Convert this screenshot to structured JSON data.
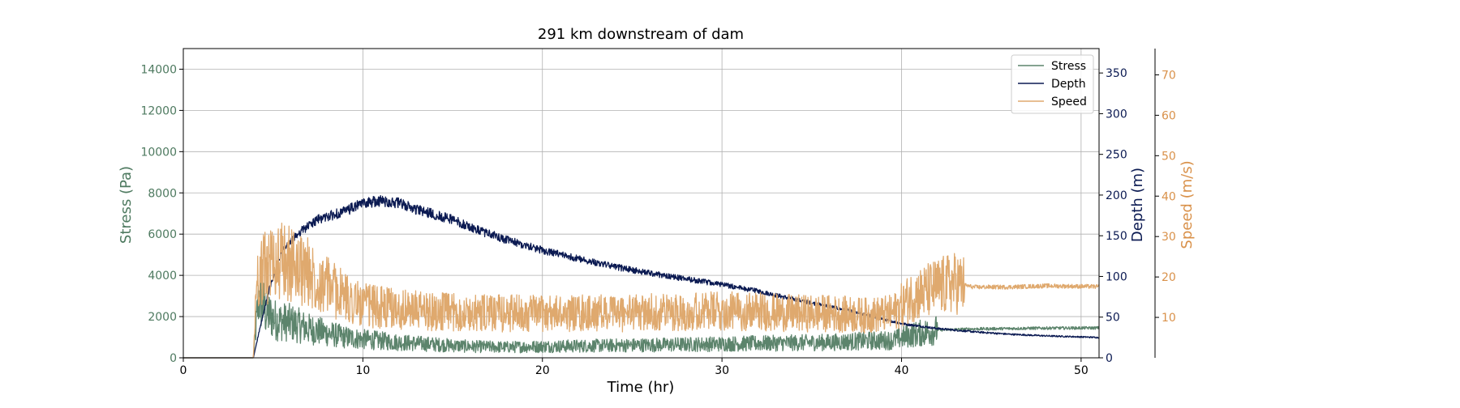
{
  "chart_data": {
    "type": "line",
    "title": "291 km downstream of dam",
    "xlabel": "Time (hr)",
    "xlim": [
      0,
      51
    ],
    "xticks": [
      0,
      10,
      20,
      30,
      40,
      50
    ],
    "grid": true,
    "legend_placement": "top-right",
    "axes": {
      "stress": {
        "label": "Stress (Pa)",
        "ylim": [
          0,
          15000
        ],
        "ticks": [
          0,
          2000,
          4000,
          6000,
          8000,
          10000,
          12000,
          14000
        ],
        "color": "#4e7a60",
        "side": "left"
      },
      "depth": {
        "label": "Depth (m)",
        "ylim": [
          0,
          380
        ],
        "ticks": [
          0,
          50,
          100,
          150,
          200,
          250,
          300,
          350
        ],
        "color": "#0b1a52",
        "side": "right"
      },
      "speed": {
        "label": "Speed (m/s)",
        "ylim": [
          0,
          76.5
        ],
        "ticks": [
          10,
          20,
          30,
          40,
          50,
          60,
          70
        ],
        "color": "#d9914a",
        "side": "right-outer"
      }
    },
    "series": [
      {
        "name": "Stress",
        "axis": "stress",
        "color": "#5c846c",
        "noise": 0.55,
        "points": [
          [
            0,
            0
          ],
          [
            3.9,
            0
          ],
          [
            4.2,
            3000
          ],
          [
            4.6,
            2200
          ],
          [
            5.2,
            1800
          ],
          [
            6,
            1700
          ],
          [
            7,
            1400
          ],
          [
            8,
            1200
          ],
          [
            9,
            1000
          ],
          [
            10,
            900
          ],
          [
            12,
            750
          ],
          [
            14,
            650
          ],
          [
            16,
            550
          ],
          [
            18,
            520
          ],
          [
            20,
            550
          ],
          [
            24,
            600
          ],
          [
            28,
            650
          ],
          [
            32,
            700
          ],
          [
            36,
            750
          ],
          [
            38,
            820
          ],
          [
            39.5,
            850
          ],
          [
            40.5,
            1100
          ],
          [
            42,
            1350
          ],
          [
            44,
            1400
          ],
          [
            46,
            1420
          ],
          [
            48,
            1440
          ],
          [
            51,
            1450
          ]
        ]
      },
      {
        "name": "Depth",
        "axis": "depth",
        "color": "#0b1a52",
        "noise": 0.035,
        "points": [
          [
            0,
            0
          ],
          [
            3.9,
            0
          ],
          [
            4.2,
            30
          ],
          [
            4.8,
            85
          ],
          [
            5.5,
            130
          ],
          [
            6.5,
            155
          ],
          [
            7.5,
            170
          ],
          [
            9,
            180
          ],
          [
            10,
            190
          ],
          [
            11,
            193
          ],
          [
            12,
            190
          ],
          [
            13,
            182
          ],
          [
            14,
            176
          ],
          [
            15,
            170
          ],
          [
            16,
            160
          ],
          [
            18,
            145
          ],
          [
            20,
            132
          ],
          [
            22,
            122
          ],
          [
            24,
            112
          ],
          [
            26,
            104
          ],
          [
            28,
            97
          ],
          [
            30,
            90
          ],
          [
            32,
            82
          ],
          [
            34,
            72
          ],
          [
            36,
            63
          ],
          [
            38,
            53
          ],
          [
            40,
            42
          ],
          [
            42,
            36
          ],
          [
            44,
            32
          ],
          [
            46,
            29
          ],
          [
            48,
            27
          ],
          [
            51,
            25
          ]
        ]
      },
      {
        "name": "Speed",
        "axis": "speed",
        "color": "#dfa96e",
        "noise": 0.42,
        "points": [
          [
            0,
            0
          ],
          [
            3.9,
            0
          ],
          [
            4.1,
            20
          ],
          [
            4.5,
            22
          ],
          [
            5,
            24
          ],
          [
            6,
            23
          ],
          [
            7,
            21
          ],
          [
            8,
            18
          ],
          [
            9,
            15
          ],
          [
            10,
            13
          ],
          [
            12,
            12
          ],
          [
            14,
            11.5
          ],
          [
            16,
            11
          ],
          [
            20,
            11
          ],
          [
            24,
            11
          ],
          [
            28,
            11.5
          ],
          [
            32,
            11.5
          ],
          [
            34,
            11
          ],
          [
            36,
            11
          ],
          [
            38,
            10.5
          ],
          [
            39.5,
            11
          ],
          [
            40.5,
            15
          ],
          [
            42,
            17.5
          ],
          [
            43,
            18.5
          ],
          [
            44,
            17.5
          ],
          [
            46,
            17.5
          ],
          [
            48,
            17.8
          ],
          [
            51,
            17.6
          ]
        ]
      }
    ]
  }
}
